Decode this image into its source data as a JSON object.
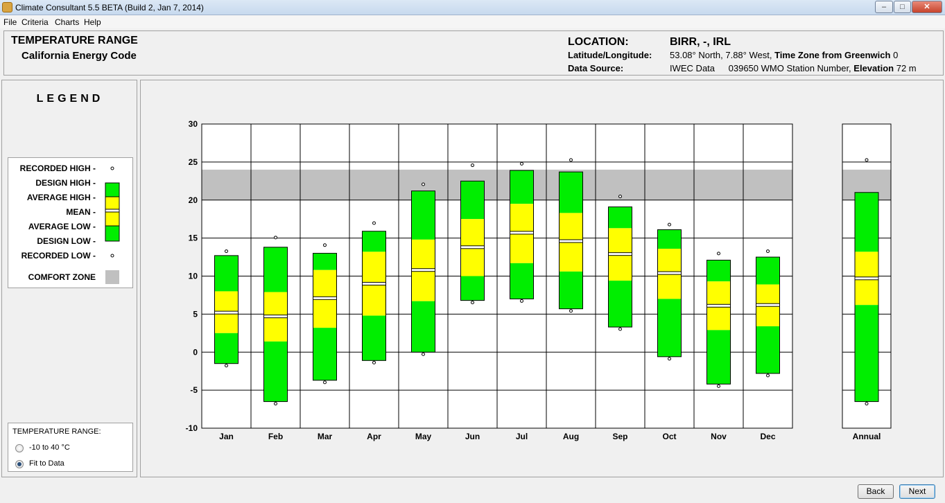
{
  "window": {
    "title": "Climate Consultant 5.5 BETA (Build 2, Jan 7, 2014)"
  },
  "menu": [
    "File",
    "Criteria",
    "Charts",
    "Help"
  ],
  "header": {
    "title": "TEMPERATURE RANGE",
    "subtitle": "California Energy Code",
    "location_label": "LOCATION:",
    "location_value": "BIRR, -, IRL",
    "latlon_label": "Latitude/Longitude:",
    "latlon_value": "53.08° North, 7.88° West,",
    "tz_label": "Time Zone from Greenwich",
    "tz_value": "0",
    "source_label": "Data Source:",
    "source_value": "IWEC Data",
    "station_value": "039650 WMO Station Number,",
    "elev_label": "Elevation",
    "elev_value": "72 m"
  },
  "legend": {
    "title": "LEGEND",
    "items": [
      "RECORDED HIGH -",
      "DESIGN HIGH -",
      "AVERAGE HIGH -",
      "MEAN -",
      "AVERAGE LOW -",
      "DESIGN LOW -",
      "RECORDED LOW -"
    ],
    "comfort_zone": "COMFORT ZONE"
  },
  "range_panel": {
    "title": "TEMPERATURE RANGE:",
    "options": [
      {
        "label": "-10 to 40 °C",
        "selected": false
      },
      {
        "label": "Fit to Data",
        "selected": true
      }
    ]
  },
  "buttons": {
    "back": "Back",
    "next": "Next"
  },
  "colors": {
    "design_band": "#00ee00",
    "average_band": "#ffff00",
    "comfort_zone": "#c0c0c0",
    "mean": "#ffffff"
  },
  "chart_data": {
    "type": "bar",
    "ylim": [
      -10,
      30
    ],
    "yticks": [
      -10,
      -5,
      0,
      5,
      10,
      15,
      20,
      25,
      30
    ],
    "comfort_zone": [
      20,
      24
    ],
    "categories": [
      "Jan",
      "Feb",
      "Mar",
      "Apr",
      "May",
      "Jun",
      "Jul",
      "Aug",
      "Sep",
      "Oct",
      "Nov",
      "Dec"
    ],
    "annual_label": "Annual",
    "series": [
      {
        "month": "Jan",
        "recorded_high": 13.0,
        "design_high": 12.7,
        "average_high": 8.0,
        "mean": 5.2,
        "average_low": 2.5,
        "design_low": -1.5,
        "recorded_low": -1.5
      },
      {
        "month": "Feb",
        "recorded_high": 14.8,
        "design_high": 13.8,
        "average_high": 7.9,
        "mean": 4.7,
        "average_low": 1.4,
        "design_low": -6.5,
        "recorded_low": -6.5
      },
      {
        "month": "Mar",
        "recorded_high": 13.8,
        "design_high": 13.0,
        "average_high": 10.8,
        "mean": 7.1,
        "average_low": 3.2,
        "design_low": -3.7,
        "recorded_low": -3.7
      },
      {
        "month": "Apr",
        "recorded_high": 16.7,
        "design_high": 15.9,
        "average_high": 13.2,
        "mean": 9.0,
        "average_low": 4.8,
        "design_low": -1.1,
        "recorded_low": -1.1
      },
      {
        "month": "May",
        "recorded_high": 21.8,
        "design_high": 21.2,
        "average_high": 14.8,
        "mean": 10.8,
        "average_low": 6.7,
        "design_low": 0.0,
        "recorded_low": 0.0
      },
      {
        "month": "Jun",
        "recorded_high": 24.3,
        "design_high": 22.5,
        "average_high": 17.5,
        "mean": 13.8,
        "average_low": 10.0,
        "design_low": 6.8,
        "recorded_low": 6.8
      },
      {
        "month": "Jul",
        "recorded_high": 24.5,
        "design_high": 23.9,
        "average_high": 19.5,
        "mean": 15.7,
        "average_low": 11.7,
        "design_low": 7.0,
        "recorded_low": 7.0
      },
      {
        "month": "Aug",
        "recorded_high": 25.0,
        "design_high": 23.7,
        "average_high": 18.3,
        "mean": 14.6,
        "average_low": 10.6,
        "design_low": 5.7,
        "recorded_low": 5.7
      },
      {
        "month": "Sep",
        "recorded_high": 20.2,
        "design_high": 19.1,
        "average_high": 16.3,
        "mean": 12.9,
        "average_low": 9.4,
        "design_low": 3.3,
        "recorded_low": 3.3
      },
      {
        "month": "Oct",
        "recorded_high": 16.5,
        "design_high": 16.1,
        "average_high": 13.6,
        "mean": 10.4,
        "average_low": 7.0,
        "design_low": -0.6,
        "recorded_low": -0.6
      },
      {
        "month": "Nov",
        "recorded_high": 12.7,
        "design_high": 12.1,
        "average_high": 9.3,
        "mean": 6.1,
        "average_low": 2.9,
        "design_low": -4.2,
        "recorded_low": -4.2
      },
      {
        "month": "Dec",
        "recorded_high": 13.0,
        "design_high": 12.5,
        "average_high": 8.9,
        "mean": 6.2,
        "average_low": 3.4,
        "design_low": -2.8,
        "recorded_low": -2.8
      }
    ],
    "annual": {
      "recorded_high": 25.0,
      "design_high": 21.0,
      "average_high": 13.2,
      "mean": 9.7,
      "average_low": 6.2,
      "design_low": -6.5,
      "recorded_low": -6.5
    }
  }
}
